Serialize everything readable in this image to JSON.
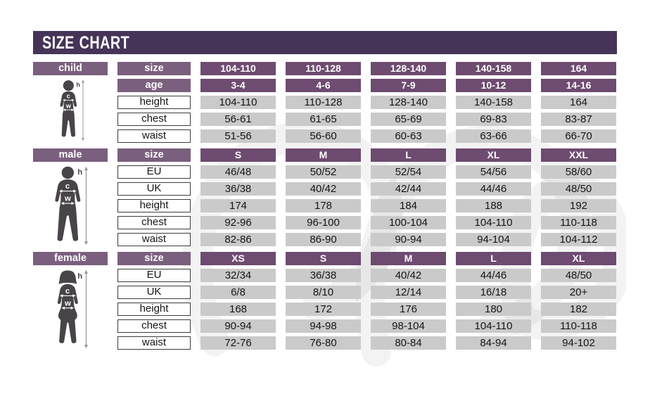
{
  "title": "SIZE CHART",
  "colors": {
    "title_bar": "#453457",
    "section_bar": "#7b5f7e",
    "header_cell": "#6e4b70",
    "data_cell": "#cacaca"
  },
  "figure_markers": {
    "height": "h",
    "chest": "c",
    "waist": "w"
  },
  "chart_data": {
    "type": "table",
    "title": "SIZE CHART",
    "tables": [
      {
        "id": "child",
        "label": "child",
        "header_rows": [
          {
            "label": "size",
            "values": [
              "104-110",
              "110-128",
              "128-140",
              "140-158",
              "164"
            ]
          },
          {
            "label": "age",
            "values": [
              "3-4",
              "4-6",
              "7-9",
              "10-12",
              "14-16"
            ]
          }
        ],
        "rows": [
          {
            "label": "height",
            "values": [
              "104-110",
              "110-128",
              "128-140",
              "140-158",
              "164"
            ]
          },
          {
            "label": "chest",
            "values": [
              "56-61",
              "61-65",
              "65-69",
              "69-83",
              "83-87"
            ]
          },
          {
            "label": "waist",
            "values": [
              "51-56",
              "56-60",
              "60-63",
              "63-66",
              "66-70"
            ]
          }
        ]
      },
      {
        "id": "male",
        "label": "male",
        "header_rows": [
          {
            "label": "size",
            "values": [
              "S",
              "M",
              "L",
              "XL",
              "XXL"
            ]
          }
        ],
        "rows": [
          {
            "label": "EU",
            "values": [
              "46/48",
              "50/52",
              "52/54",
              "54/56",
              "58/60"
            ]
          },
          {
            "label": "UK",
            "values": [
              "36/38",
              "40/42",
              "42/44",
              "44/46",
              "48/50"
            ]
          },
          {
            "label": "height",
            "values": [
              "174",
              "178",
              "184",
              "188",
              "192"
            ]
          },
          {
            "label": "chest",
            "values": [
              "92-96",
              "96-100",
              "100-104",
              "104-110",
              "110-118"
            ]
          },
          {
            "label": "waist",
            "values": [
              "82-86",
              "86-90",
              "90-94",
              "94-104",
              "104-112"
            ]
          }
        ]
      },
      {
        "id": "female",
        "label": "female",
        "header_rows": [
          {
            "label": "size",
            "values": [
              "XS",
              "S",
              "M",
              "L",
              "XL"
            ]
          }
        ],
        "rows": [
          {
            "label": "EU",
            "values": [
              "32/34",
              "36/38",
              "40/42",
              "44/46",
              "48/50"
            ]
          },
          {
            "label": "UK",
            "values": [
              "6/8",
              "8/10",
              "12/14",
              "16/18",
              "20+"
            ]
          },
          {
            "label": "height",
            "values": [
              "168",
              "172",
              "176",
              "180",
              "182"
            ]
          },
          {
            "label": "chest",
            "values": [
              "90-94",
              "94-98",
              "98-104",
              "104-110",
              "110-118"
            ]
          },
          {
            "label": "waist",
            "values": [
              "72-76",
              "76-80",
              "80-84",
              "84-94",
              "94-102"
            ]
          }
        ]
      }
    ]
  }
}
